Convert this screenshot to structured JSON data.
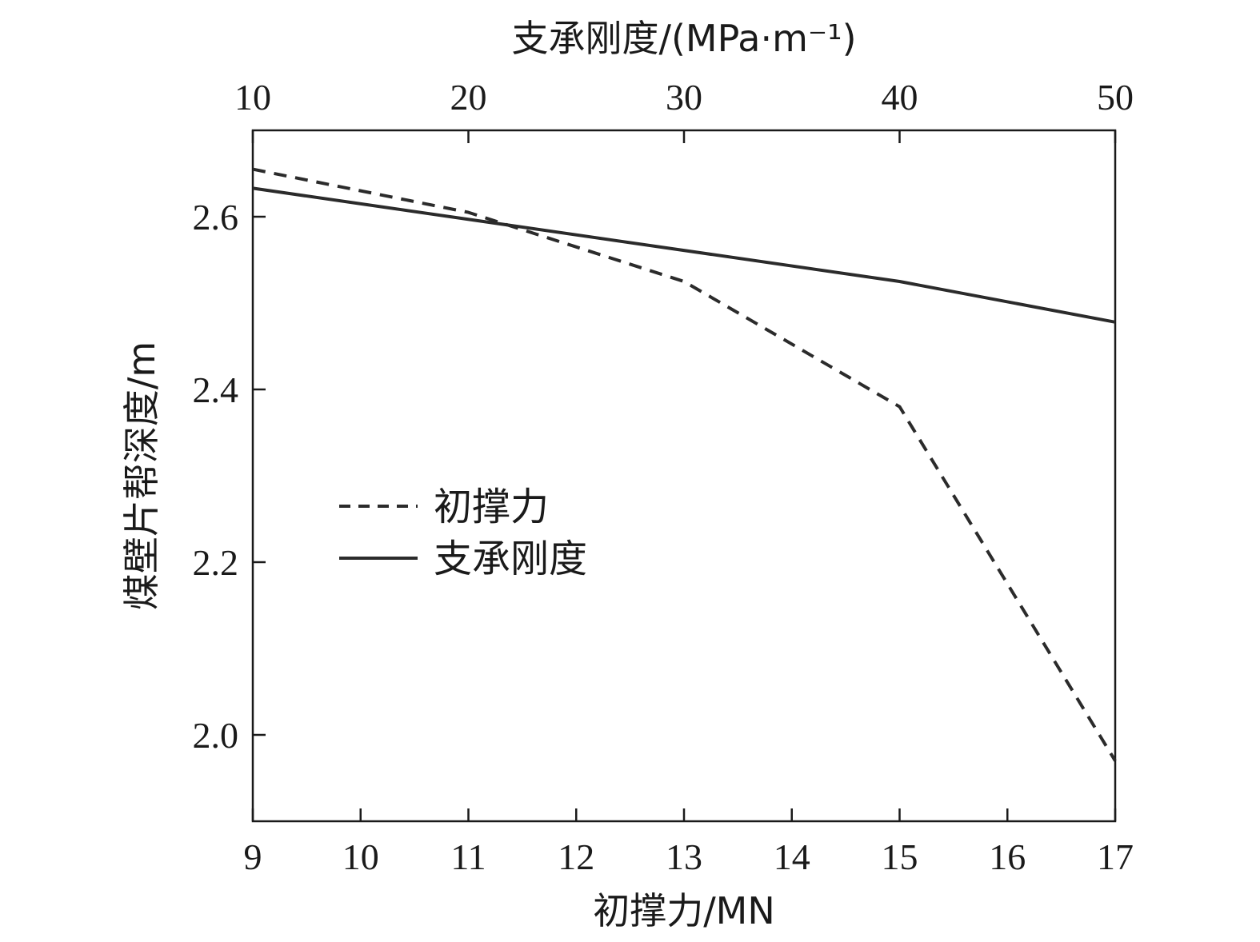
{
  "chart_data": {
    "type": "line",
    "top_axis": {
      "title": "支承刚度/(MPa·m⁻¹)",
      "lim": [
        10,
        50
      ],
      "ticks": [
        10,
        20,
        30,
        40,
        50
      ]
    },
    "bottom_axis": {
      "title": "初撑力/MN",
      "lim": [
        9,
        17
      ],
      "ticks": [
        9,
        10,
        11,
        12,
        13,
        14,
        15,
        16,
        17
      ]
    },
    "y_axis": {
      "title": "煤壁片帮深度/m",
      "lim": [
        1.9,
        2.7
      ],
      "ticks": [
        2.0,
        2.2,
        2.4,
        2.6
      ],
      "tick_labels": [
        "2.0",
        "2.2",
        "2.4",
        "2.6"
      ]
    },
    "series": [
      {
        "name": "初撑力",
        "style": "dashed",
        "x_axis": "bottom",
        "x": [
          9,
          11,
          13,
          15,
          17
        ],
        "y": [
          2.655,
          2.605,
          2.525,
          2.38,
          1.97
        ]
      },
      {
        "name": "支承刚度",
        "style": "solid",
        "x_axis": "top",
        "x": [
          10,
          40,
          50
        ],
        "y": [
          2.633,
          2.525,
          2.478
        ]
      }
    ],
    "legend": {
      "position": "left-middle"
    },
    "grid": false,
    "colors": {
      "line": "#2b2b2b",
      "axis": "#1a1a1a"
    }
  }
}
